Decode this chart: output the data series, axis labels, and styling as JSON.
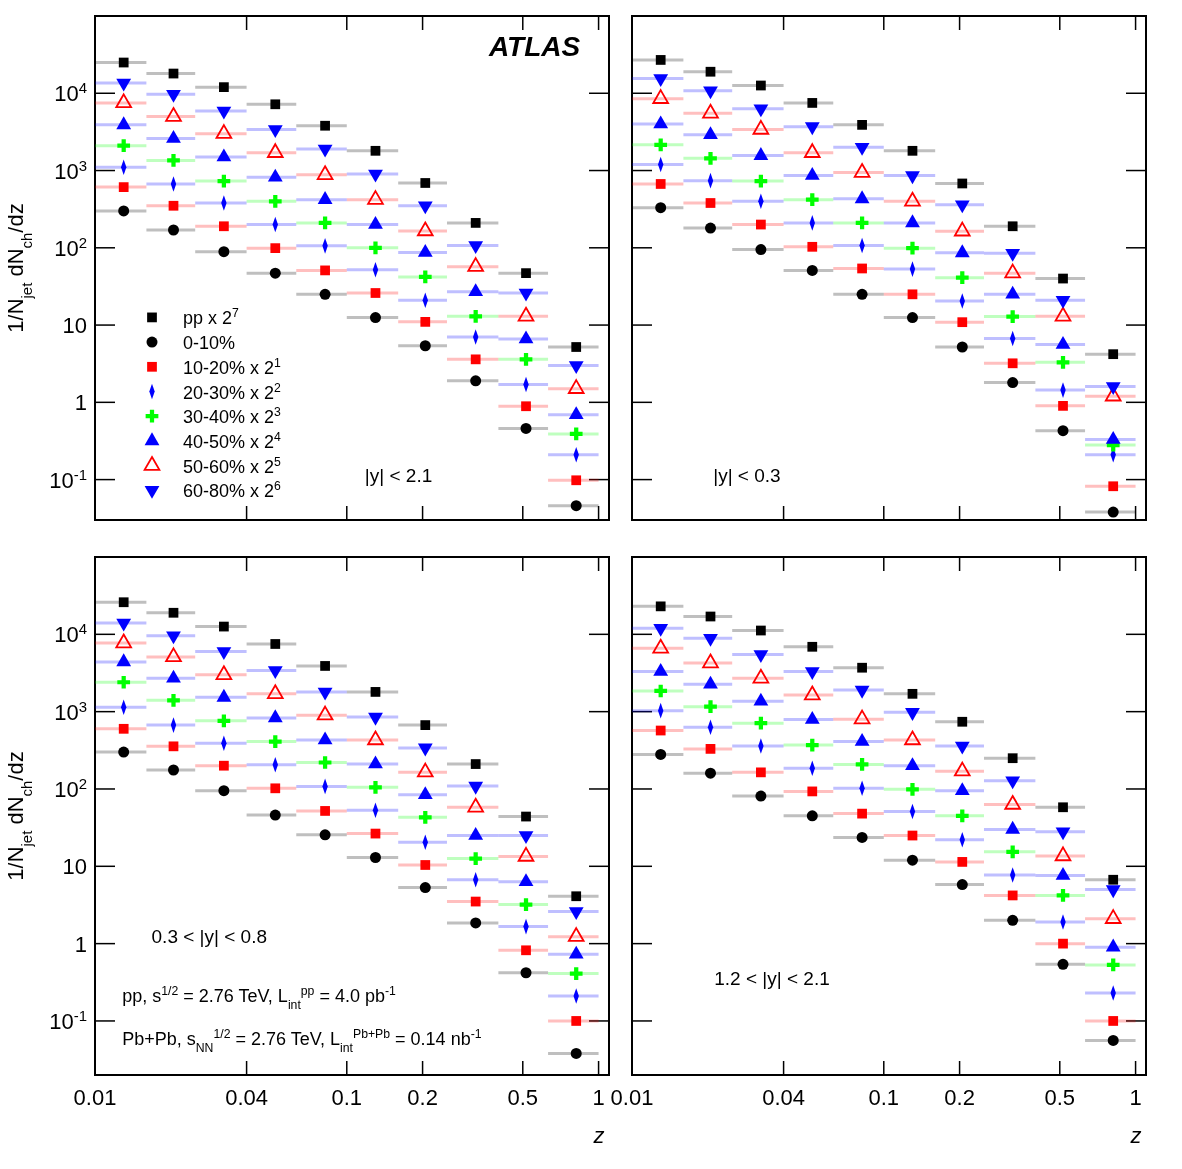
{
  "chart_data": [
    {
      "type": "scatter",
      "ylabel": "1/N$_{jet}$ dN$_{ch}$/dz",
      "xlim": [
        0.01,
        1.1
      ],
      "ylim": [
        0.03,
        100000
      ],
      "log": "xy",
      "grid": false,
      "legend": "bottom left",
      "tick_labels": "y",
      "xticks": [
        {
          "value": 0.01,
          "label": null
        },
        {
          "value": 0.04,
          "label": null
        },
        {
          "value": 0.1,
          "label": null
        },
        {
          "value": 0.2,
          "label": null
        },
        {
          "value": 0.5,
          "label": null
        },
        {
          "value": 1,
          "label": null
        }
      ],
      "yticks": [
        {
          "value": 10000,
          "label": "10$^{4}$"
        },
        {
          "value": 1000,
          "label": "10$^{3}$"
        },
        {
          "value": 100,
          "label": "10$^{2}$"
        },
        {
          "value": 10,
          "label": "10"
        },
        {
          "value": 1,
          "label": "1"
        },
        {
          "value": 0.1,
          "label": "10$^{-1}$"
        }
      ],
      "x": [
        0.013,
        0.0205,
        0.0325,
        0.052,
        0.082,
        0.13,
        0.205,
        0.325,
        0.515,
        0.815
      ],
      "annotations": [
        "ATLAS",
        "|y| < 2.1"
      ],
      "series": [
        {
          "name": "pp x 2$^{7}$",
          "color": "#000000",
          "marker": "square",
          "values": [
            25000,
            18000,
            12000,
            7200,
            3800,
            1800,
            690,
            210,
            47,
            5.2
          ],
          "xerrors": [
            [
              0.01,
              0.016
            ],
            [
              0.016,
              0.025
            ],
            [
              0.025,
              0.04
            ],
            [
              0.04,
              0.063
            ],
            [
              0.063,
              0.1
            ],
            [
              0.1,
              0.16
            ],
            [
              0.16,
              0.25
            ],
            [
              0.25,
              0.4
            ],
            [
              0.4,
              0.63
            ],
            [
              0.63,
              1
            ]
          ]
        },
        {
          "name": "0-10%",
          "color": "#000000",
          "marker": "circle",
          "values": [
            300,
            170,
            89,
            47,
            25,
            12.5,
            5.4,
            1.9,
            0.46,
            0.046
          ],
          "xerrors": [
            [
              0.01,
              0.016
            ],
            [
              0.016,
              0.025
            ],
            [
              0.025,
              0.04
            ],
            [
              0.04,
              0.063
            ],
            [
              0.063,
              0.1
            ],
            [
              0.1,
              0.16
            ],
            [
              0.16,
              0.25
            ],
            [
              0.25,
              0.4
            ],
            [
              0.4,
              0.63
            ],
            [
              0.63,
              1
            ]
          ]
        },
        {
          "name": "10-20% x 2$^{1}$",
          "color": "#ff0000",
          "marker": "square",
          "values": [
            610,
            350,
            190,
            99,
            51,
            26,
            11,
            3.6,
            0.89,
            0.098
          ],
          "xerrors": [
            [
              0.01,
              0.016
            ],
            [
              0.016,
              0.025
            ],
            [
              0.025,
              0.04
            ],
            [
              0.04,
              0.063
            ],
            [
              0.063,
              0.1
            ],
            [
              0.1,
              0.16
            ],
            [
              0.16,
              0.25
            ],
            [
              0.25,
              0.4
            ],
            [
              0.4,
              0.63
            ],
            [
              0.63,
              1
            ]
          ]
        },
        {
          "name": "20-30% x 2$^{2}$",
          "color": "#0000ff",
          "marker": "diamond",
          "values": [
            1100,
            670,
            380,
            200,
            106,
            52,
            21,
            7.0,
            1.7,
            0.21
          ],
          "xerrors": [
            [
              0.01,
              0.016
            ],
            [
              0.016,
              0.025
            ],
            [
              0.025,
              0.04
            ],
            [
              0.04,
              0.063
            ],
            [
              0.063,
              0.1
            ],
            [
              0.1,
              0.16
            ],
            [
              0.16,
              0.25
            ],
            [
              0.25,
              0.4
            ],
            [
              0.4,
              0.63
            ],
            [
              0.63,
              1
            ]
          ]
        },
        {
          "name": "30-40% x 2$^{3}$",
          "color": "#00ff00",
          "marker": "cross",
          "values": [
            2100,
            1350,
            730,
            400,
            210,
            100,
            42,
            13,
            3.6,
            0.39
          ],
          "xerrors": [
            [
              0.01,
              0.016
            ],
            [
              0.016,
              0.025
            ],
            [
              0.025,
              0.04
            ],
            [
              0.04,
              0.063
            ],
            [
              0.063,
              0.1
            ],
            [
              0.1,
              0.16
            ],
            [
              0.16,
              0.25
            ],
            [
              0.25,
              0.4
            ],
            [
              0.4,
              0.63
            ],
            [
              0.63,
              1
            ]
          ]
        },
        {
          "name": "40-50% x 2$^{4}$",
          "color": "#0000ff",
          "marker": "triangle",
          "values": [
            3900,
            2600,
            1500,
            820,
            420,
            200,
            87,
            27,
            6.6,
            0.69
          ],
          "xerrors": [
            [
              0.01,
              0.016
            ],
            [
              0.016,
              0.025
            ],
            [
              0.025,
              0.04
            ],
            [
              0.04,
              0.063
            ],
            [
              0.063,
              0.1
            ],
            [
              0.1,
              0.16
            ],
            [
              0.16,
              0.25
            ],
            [
              0.25,
              0.4
            ],
            [
              0.4,
              0.63
            ],
            [
              0.63,
              1
            ]
          ]
        },
        {
          "name": "50-60% x 2$^{5}$",
          "color": "#ff0000",
          "marker": "triangle-open",
          "values": [
            7500,
            5000,
            3000,
            1700,
            880,
            420,
            165,
            57,
            13,
            1.5
          ],
          "xerrors": [
            [
              0.01,
              0.016
            ],
            [
              0.016,
              0.025
            ],
            [
              0.025,
              0.04
            ],
            [
              0.04,
              0.063
            ],
            [
              0.063,
              0.1
            ],
            [
              0.1,
              0.16
            ],
            [
              0.16,
              0.25
            ],
            [
              0.25,
              0.4
            ],
            [
              0.4,
              0.63
            ],
            [
              0.63,
              1
            ]
          ]
        },
        {
          "name": "60-80% x 2$^{6}$",
          "color": "#0000ff",
          "marker": "triangle-down",
          "values": [
            13600,
            9700,
            5900,
            3400,
            1900,
            900,
            350,
            107,
            26,
            3.0
          ],
          "xerrors": [
            [
              0.01,
              0.016
            ],
            [
              0.016,
              0.025
            ],
            [
              0.025,
              0.04
            ],
            [
              0.04,
              0.063
            ],
            [
              0.063,
              0.1
            ],
            [
              0.1,
              0.16
            ],
            [
              0.16,
              0.25
            ],
            [
              0.25,
              0.4
            ],
            [
              0.4,
              0.63
            ],
            [
              0.63,
              1
            ]
          ]
        }
      ]
    },
    {
      "type": "scatter",
      "xlim": [
        0.01,
        1.1
      ],
      "ylim": [
        0.03,
        100000
      ],
      "log": "xy",
      "grid": false,
      "tick_labels": false,
      "xticks": [
        {
          "value": 0.01,
          "label": null
        },
        {
          "value": 0.04,
          "label": null
        },
        {
          "value": 0.1,
          "label": null
        },
        {
          "value": 0.2,
          "label": null
        },
        {
          "value": 0.5,
          "label": null
        },
        {
          "value": 1,
          "label": null
        }
      ],
      "yticks": [
        {
          "value": 10000,
          "label": null
        },
        {
          "value": 1000,
          "label": null
        },
        {
          "value": 100,
          "label": null
        },
        {
          "value": 10,
          "label": null
        },
        {
          "value": 1,
          "label": null
        },
        {
          "value": 0.1,
          "label": null
        }
      ],
      "x": [
        0.013,
        0.0205,
        0.0325,
        0.052,
        0.082,
        0.13,
        0.205,
        0.325,
        0.515,
        0.815
      ],
      "annotations": [
        "|y| < 0.3"
      ],
      "series": [
        {
          "color": "#000000",
          "marker": "square",
          "values": [
            27000,
            19000,
            12600,
            7500,
            3900,
            1800,
            680,
            190,
            40,
            4.2
          ],
          "xerrors": [
            [
              0.01,
              0.016
            ],
            [
              0.016,
              0.025
            ],
            [
              0.025,
              0.04
            ],
            [
              0.04,
              0.063
            ],
            [
              0.063,
              0.1
            ],
            [
              0.1,
              0.16
            ],
            [
              0.16,
              0.25
            ],
            [
              0.25,
              0.4
            ],
            [
              0.4,
              0.63
            ],
            [
              0.63,
              1
            ]
          ]
        },
        {
          "color": "#000000",
          "marker": "circle",
          "values": [
            330,
            180,
            95,
            51,
            25,
            12.5,
            5.2,
            1.8,
            0.43,
            0.038
          ],
          "xerrors": [
            [
              0.01,
              0.016
            ],
            [
              0.016,
              0.025
            ],
            [
              0.025,
              0.04
            ],
            [
              0.04,
              0.063
            ],
            [
              0.063,
              0.1
            ],
            [
              0.1,
              0.16
            ],
            [
              0.16,
              0.25
            ],
            [
              0.25,
              0.4
            ],
            [
              0.4,
              0.63
            ],
            [
              0.63,
              1
            ]
          ]
        },
        {
          "color": "#ff0000",
          "marker": "square",
          "values": [
            670,
            380,
            200,
            103,
            54,
            25,
            10.9,
            3.2,
            0.9,
            0.082
          ],
          "xerrors": [
            [
              0.01,
              0.016
            ],
            [
              0.016,
              0.025
            ],
            [
              0.025,
              0.04
            ],
            [
              0.04,
              0.063
            ],
            [
              0.063,
              0.1
            ],
            [
              0.1,
              0.16
            ],
            [
              0.16,
              0.25
            ],
            [
              0.25,
              0.4
            ],
            [
              0.4,
              0.63
            ],
            [
              0.63,
              1
            ]
          ]
        },
        {
          "color": "#0000ff",
          "marker": "diamond",
          "values": [
            1200,
            740,
            400,
            210,
            107,
            53,
            20.5,
            6.7,
            1.44,
            0.21
          ],
          "xerrors": [
            [
              0.01,
              0.016
            ],
            [
              0.016,
              0.025
            ],
            [
              0.025,
              0.04
            ],
            [
              0.04,
              0.063
            ],
            [
              0.063,
              0.1
            ],
            [
              0.1,
              0.16
            ],
            [
              0.16,
              0.25
            ],
            [
              0.25,
              0.4
            ],
            [
              0.4,
              0.63
            ],
            [
              0.63,
              1
            ]
          ]
        },
        {
          "color": "#00ff00",
          "marker": "cross",
          "values": [
            2150,
            1440,
            730,
            420,
            210,
            99,
            41,
            12.9,
            3.3,
            0.28
          ],
          "xerrors": [
            [
              0.01,
              0.016
            ],
            [
              0.016,
              0.025
            ],
            [
              0.025,
              0.04
            ],
            [
              0.04,
              0.063
            ],
            [
              0.063,
              0.1
            ],
            [
              0.1,
              0.16
            ],
            [
              0.16,
              0.25
            ],
            [
              0.25,
              0.4
            ],
            [
              0.4,
              0.63
            ],
            [
              0.63,
              1
            ]
          ]
        },
        {
          "color": "#0000ff",
          "marker": "triangle",
          "values": [
            4000,
            2900,
            1560,
            860,
            430,
            210,
            86,
            25,
            5.6,
            0.33
          ],
          "xerrors": [
            [
              0.01,
              0.016
            ],
            [
              0.016,
              0.025
            ],
            [
              0.025,
              0.04
            ],
            [
              0.04,
              0.063
            ],
            [
              0.063,
              0.1
            ],
            [
              0.1,
              0.16
            ],
            [
              0.16,
              0.25
            ],
            [
              0.25,
              0.4
            ],
            [
              0.4,
              0.63
            ],
            [
              0.63,
              1
            ]
          ]
        },
        {
          "color": "#ff0000",
          "marker": "triangle-open",
          "values": [
            8500,
            5500,
            3400,
            1700,
            940,
            400,
            164,
            47,
            13,
            1.2
          ],
          "xerrors": [
            [
              0.01,
              0.016
            ],
            [
              0.016,
              0.025
            ],
            [
              0.025,
              0.04
            ],
            [
              0.04,
              0.063
            ],
            [
              0.063,
              0.1
            ],
            [
              0.1,
              0.16
            ],
            [
              0.16,
              0.25
            ],
            [
              0.25,
              0.4
            ],
            [
              0.4,
              0.63
            ],
            [
              0.63,
              1
            ]
          ]
        },
        {
          "color": "#0000ff",
          "marker": "triangle-down",
          "values": [
            15500,
            10800,
            6300,
            3700,
            2000,
            860,
            360,
            85,
            21,
            1.6
          ],
          "xerrors": [
            [
              0.01,
              0.016
            ],
            [
              0.016,
              0.025
            ],
            [
              0.025,
              0.04
            ],
            [
              0.04,
              0.063
            ],
            [
              0.063,
              0.1
            ],
            [
              0.1,
              0.16
            ],
            [
              0.16,
              0.25
            ],
            [
              0.25,
              0.4
            ],
            [
              0.4,
              0.63
            ],
            [
              0.63,
              1
            ]
          ]
        }
      ]
    },
    {
      "type": "scatter",
      "ylabel": "1/N$_{jet}$ dN$_{ch}$/dz",
      "xlabel": "z",
      "xlim": [
        0.01,
        1.1
      ],
      "ylim": [
        0.02,
        100000
      ],
      "log": "xy",
      "grid": false,
      "xticks": [
        0.01,
        0.04,
        0.1,
        0.2,
        0.5,
        1
      ],
      "yticks": [
        {
          "value": 10000,
          "label": "10$^{4}$"
        },
        {
          "value": 1000,
          "label": "10$^{3}$"
        },
        {
          "value": 100,
          "label": "10$^{2}$"
        },
        10,
        1,
        {
          "value": 0.1,
          "label": "10$^{-1}$"
        }
      ],
      "x": [
        0.013,
        0.0205,
        0.0325,
        0.052,
        0.082,
        0.13,
        0.205,
        0.325,
        0.515,
        0.815
      ],
      "annotations": [
        "0.3 < |y| < 0.8",
        "pp, s$^{1/2}$ = 2.76 TeV, L$_{int}$$^{pp}$ = 4.0 pb$^{-1}$",
        "Pb+Pb, s$_{NN}$$^{1/2}$ = 2.76 TeV, L$_{int}$$^{Pb+Pb}$ = 0.14 nb$^{-1}$"
      ],
      "series": [
        {
          "color": "#000000",
          "marker": "square",
          "values": [
            26000,
            19000,
            12600,
            7500,
            3900,
            1800,
            670,
            210,
            44,
            4.1
          ],
          "xerrors": [
            [
              0.01,
              0.016
            ],
            [
              0.016,
              0.025
            ],
            [
              0.025,
              0.04
            ],
            [
              0.04,
              0.063
            ],
            [
              0.063,
              0.1
            ],
            [
              0.1,
              0.16
            ],
            [
              0.16,
              0.25
            ],
            [
              0.25,
              0.4
            ],
            [
              0.4,
              0.63
            ],
            [
              0.63,
              1
            ]
          ]
        },
        {
          "color": "#000000",
          "marker": "circle",
          "values": [
            300,
            176,
            95,
            46,
            25.5,
            13,
            5.3,
            1.85,
            0.42,
            0.038
          ],
          "xerrors": [
            [
              0.01,
              0.016
            ],
            [
              0.016,
              0.025
            ],
            [
              0.025,
              0.04
            ],
            [
              0.04,
              0.063
            ],
            [
              0.063,
              0.1
            ],
            [
              0.1,
              0.16
            ],
            [
              0.16,
              0.25
            ],
            [
              0.25,
              0.4
            ],
            [
              0.4,
              0.63
            ],
            [
              0.63,
              1
            ]
          ]
        },
        {
          "color": "#ff0000",
          "marker": "square",
          "values": [
            600,
            356,
            200,
            102,
            52,
            26.5,
            10.4,
            3.5,
            0.82,
            0.1
          ],
          "xerrors": [
            [
              0.01,
              0.016
            ],
            [
              0.016,
              0.025
            ],
            [
              0.025,
              0.04
            ],
            [
              0.04,
              0.063
            ],
            [
              0.063,
              0.1
            ],
            [
              0.1,
              0.16
            ],
            [
              0.16,
              0.25
            ],
            [
              0.25,
              0.4
            ],
            [
              0.4,
              0.63
            ],
            [
              0.63,
              1
            ]
          ]
        },
        {
          "color": "#0000ff",
          "marker": "diamond",
          "values": [
            1140,
            670,
            390,
            206,
            108,
            53,
            20.5,
            6.7,
            1.66,
            0.21
          ],
          "xerrors": [
            [
              0.01,
              0.016
            ],
            [
              0.016,
              0.025
            ],
            [
              0.025,
              0.04
            ],
            [
              0.04,
              0.063
            ],
            [
              0.063,
              0.1
            ],
            [
              0.1,
              0.16
            ],
            [
              0.16,
              0.25
            ],
            [
              0.25,
              0.4
            ],
            [
              0.4,
              0.63
            ],
            [
              0.63,
              1
            ]
          ]
        },
        {
          "color": "#00ff00",
          "marker": "cross",
          "values": [
            2400,
            1400,
            760,
            410,
            220,
            105,
            43,
            12.6,
            3.2,
            0.41
          ],
          "xerrors": [
            [
              0.01,
              0.016
            ],
            [
              0.016,
              0.025
            ],
            [
              0.025,
              0.04
            ],
            [
              0.04,
              0.063
            ],
            [
              0.063,
              0.1
            ],
            [
              0.1,
              0.16
            ],
            [
              0.16,
              0.25
            ],
            [
              0.25,
              0.4
            ],
            [
              0.4,
              0.63
            ],
            [
              0.63,
              1
            ]
          ]
        },
        {
          "color": "#0000ff",
          "marker": "triangle",
          "values": [
            4400,
            2700,
            1530,
            830,
            430,
            210,
            84,
            25,
            6.3,
            0.73
          ],
          "xerrors": [
            [
              0.01,
              0.016
            ],
            [
              0.016,
              0.025
            ],
            [
              0.025,
              0.04
            ],
            [
              0.04,
              0.063
            ],
            [
              0.063,
              0.1
            ],
            [
              0.1,
              0.16
            ],
            [
              0.16,
              0.25
            ],
            [
              0.25,
              0.4
            ],
            [
              0.4,
              0.63
            ],
            [
              0.63,
              1
            ]
          ]
        },
        {
          "color": "#ff0000",
          "marker": "triangle-open",
          "values": [
            7700,
            5100,
            3000,
            1700,
            900,
            430,
            165,
            58,
            13.4,
            1.23
          ],
          "xerrors": [
            [
              0.01,
              0.016
            ],
            [
              0.016,
              0.025
            ],
            [
              0.025,
              0.04
            ],
            [
              0.04,
              0.063
            ],
            [
              0.063,
              0.1
            ],
            [
              0.1,
              0.16
            ],
            [
              0.16,
              0.25
            ],
            [
              0.25,
              0.4
            ],
            [
              0.4,
              0.63
            ],
            [
              0.63,
              1
            ]
          ]
        },
        {
          "color": "#0000ff",
          "marker": "triangle-down",
          "values": [
            14000,
            9600,
            6000,
            3400,
            1800,
            850,
            340,
            109,
            25,
            2.6
          ],
          "xerrors": [
            [
              0.01,
              0.016
            ],
            [
              0.016,
              0.025
            ],
            [
              0.025,
              0.04
            ],
            [
              0.04,
              0.063
            ],
            [
              0.063,
              0.1
            ],
            [
              0.1,
              0.16
            ],
            [
              0.16,
              0.25
            ],
            [
              0.25,
              0.4
            ],
            [
              0.4,
              0.63
            ],
            [
              0.63,
              1
            ]
          ]
        }
      ]
    },
    {
      "type": "scatter",
      "xlabel": "z",
      "xlim": [
        0.01,
        1.1
      ],
      "ylim": [
        0.02,
        100000
      ],
      "log": "xy",
      "grid": false,
      "tick_labels": "x",
      "xticks": [
        0.01,
        0.04,
        0.1,
        0.2,
        0.5,
        1
      ],
      "yticks": [
        {
          "value": 10000,
          "label": null
        },
        {
          "value": 1000,
          "label": null
        },
        {
          "value": 100,
          "label": null
        },
        {
          "value": 10,
          "label": null
        },
        {
          "value": 1,
          "label": null
        },
        {
          "value": 0.1,
          "label": null
        }
      ],
      "x": [
        0.013,
        0.0205,
        0.0325,
        0.052,
        0.082,
        0.13,
        0.205,
        0.325,
        0.515,
        0.815
      ],
      "annotations": [
        "1.2 < |y| < 2.1"
      ],
      "series": [
        {
          "color": "#000000",
          "marker": "square",
          "values": [
            23000,
            17000,
            11200,
            6900,
            3700,
            1700,
            740,
            250,
            58,
            6.7
          ],
          "xerrors": [
            [
              0.01,
              0.016
            ],
            [
              0.016,
              0.025
            ],
            [
              0.025,
              0.04
            ],
            [
              0.04,
              0.063
            ],
            [
              0.063,
              0.1
            ],
            [
              0.1,
              0.16
            ],
            [
              0.16,
              0.25
            ],
            [
              0.25,
              0.4
            ],
            [
              0.4,
              0.63
            ],
            [
              0.63,
              1
            ]
          ]
        },
        {
          "color": "#000000",
          "marker": "circle",
          "values": [
            280,
            160,
            81,
            45,
            23.6,
            12,
            5.8,
            2,
            0.54,
            0.056
          ],
          "xerrors": [
            [
              0.01,
              0.016
            ],
            [
              0.016,
              0.025
            ],
            [
              0.025,
              0.04
            ],
            [
              0.04,
              0.063
            ],
            [
              0.063,
              0.1
            ],
            [
              0.1,
              0.16
            ],
            [
              0.16,
              0.25
            ],
            [
              0.25,
              0.4
            ],
            [
              0.4,
              0.63
            ],
            [
              0.63,
              1
            ]
          ]
        },
        {
          "color": "#ff0000",
          "marker": "square",
          "values": [
            570,
            330,
            164,
            93,
            48,
            25,
            11.4,
            4.2,
            1.0,
            0.1
          ],
          "xerrors": [
            [
              0.01,
              0.016
            ],
            [
              0.016,
              0.025
            ],
            [
              0.025,
              0.04
            ],
            [
              0.04,
              0.063
            ],
            [
              0.063,
              0.1
            ],
            [
              0.1,
              0.16
            ],
            [
              0.16,
              0.25
            ],
            [
              0.25,
              0.4
            ],
            [
              0.4,
              0.63
            ],
            [
              0.63,
              1
            ]
          ]
        },
        {
          "color": "#0000ff",
          "marker": "diamond",
          "values": [
            1030,
            630,
            360,
            185,
            102,
            51,
            22,
            7.7,
            1.9,
            0.23
          ],
          "xerrors": [
            [
              0.01,
              0.016
            ],
            [
              0.016,
              0.025
            ],
            [
              0.025,
              0.04
            ],
            [
              0.04,
              0.063
            ],
            [
              0.063,
              0.1
            ],
            [
              0.1,
              0.16
            ],
            [
              0.16,
              0.25
            ],
            [
              0.25,
              0.4
            ],
            [
              0.4,
              0.63
            ],
            [
              0.63,
              1
            ]
          ]
        },
        {
          "color": "#00ff00",
          "marker": "cross",
          "values": [
            1850,
            1160,
            710,
            370,
            208,
            99,
            45,
            15.4,
            4.2,
            0.53
          ],
          "xerrors": [
            [
              0.01,
              0.016
            ],
            [
              0.016,
              0.025
            ],
            [
              0.025,
              0.04
            ],
            [
              0.04,
              0.063
            ],
            [
              0.063,
              0.1
            ],
            [
              0.1,
              0.16
            ],
            [
              0.16,
              0.25
            ],
            [
              0.25,
              0.4
            ],
            [
              0.4,
              0.63
            ],
            [
              0.63,
              1
            ]
          ]
        },
        {
          "color": "#0000ff",
          "marker": "triangle",
          "values": [
            3300,
            2260,
            1360,
            790,
            410,
            200,
            95,
            30,
            7.6,
            0.9
          ],
          "xerrors": [
            [
              0.01,
              0.016
            ],
            [
              0.016,
              0.025
            ],
            [
              0.025,
              0.04
            ],
            [
              0.04,
              0.063
            ],
            [
              0.063,
              0.1
            ],
            [
              0.1,
              0.16
            ],
            [
              0.16,
              0.25
            ],
            [
              0.25,
              0.4
            ],
            [
              0.4,
              0.63
            ],
            [
              0.63,
              1
            ]
          ]
        },
        {
          "color": "#ff0000",
          "marker": "triangle-open",
          "values": [
            6600,
            4250,
            2700,
            1640,
            800,
            430,
            170,
            63,
            13.6,
            2.1
          ],
          "xerrors": [
            [
              0.01,
              0.016
            ],
            [
              0.016,
              0.025
            ],
            [
              0.025,
              0.04
            ],
            [
              0.04,
              0.063
            ],
            [
              0.063,
              0.1
            ],
            [
              0.1,
              0.16
            ],
            [
              0.16,
              0.25
            ],
            [
              0.25,
              0.4
            ],
            [
              0.4,
              0.63
            ],
            [
              0.63,
              1
            ]
          ]
        },
        {
          "color": "#0000ff",
          "marker": "triangle-down",
          "values": [
            12000,
            8900,
            5500,
            3300,
            1900,
            980,
            360,
            128,
            28,
            5.0
          ],
          "xerrors": [
            [
              0.01,
              0.016
            ],
            [
              0.016,
              0.025
            ],
            [
              0.025,
              0.04
            ],
            [
              0.04,
              0.063
            ],
            [
              0.063,
              0.1
            ],
            [
              0.1,
              0.16
            ],
            [
              0.16,
              0.25
            ],
            [
              0.25,
              0.4
            ],
            [
              0.4,
              0.63
            ],
            [
              0.63,
              1
            ]
          ]
        }
      ]
    }
  ]
}
